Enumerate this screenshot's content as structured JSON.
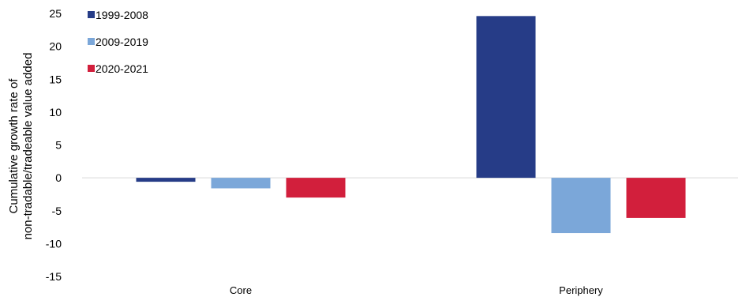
{
  "chart_data": {
    "type": "bar",
    "title": "",
    "xlabel": "",
    "ylabel_lines": [
      "Cumulative growth rate of",
      "non-tradable/tradeable value added"
    ],
    "ylim": [
      -15,
      25
    ],
    "yticks": [
      25,
      20,
      15,
      10,
      5,
      0,
      -5,
      -10,
      -15
    ],
    "categories": [
      "Core",
      "Periphery"
    ],
    "legend_position": "top-left",
    "grid": false,
    "series": [
      {
        "name": "1999-2008",
        "color": "#263c87",
        "values": [
          -0.6,
          24.6
        ]
      },
      {
        "name": "2009-2019",
        "color": "#7ba7d9",
        "values": [
          -1.6,
          -8.4
        ]
      },
      {
        "name": "2020-2021",
        "color": "#d21f3c",
        "values": [
          -3.0,
          -6.1
        ]
      }
    ]
  }
}
